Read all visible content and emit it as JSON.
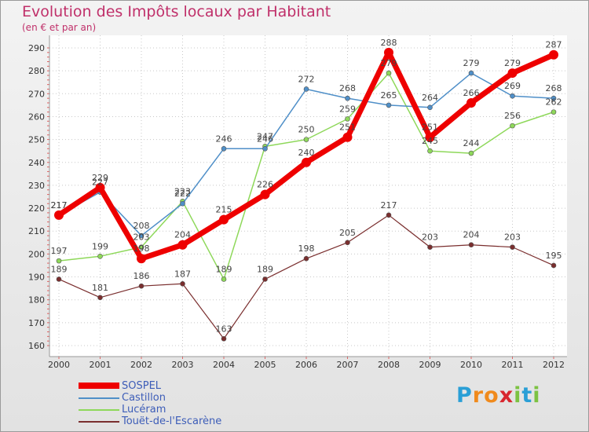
{
  "title": "Evolution des Impôts locaux par Habitant",
  "subtitle": "(en € et par an)",
  "logo": {
    "letters": [
      "P",
      "r",
      "o",
      "x",
      "i",
      "t",
      "i"
    ],
    "colors": [
      "#2a9fd6",
      "#f08a1c",
      "#f08a1c",
      "#d8262e",
      "#7cc242",
      "#2a9fd6",
      "#7cc242"
    ]
  },
  "chart_data": {
    "type": "line",
    "x": [
      "2000",
      "2001",
      "2002",
      "2003",
      "2004",
      "2005",
      "2006",
      "2007",
      "2008",
      "2009",
      "2010",
      "2011",
      "2012"
    ],
    "yticks": [
      "160",
      "170",
      "180",
      "190",
      "200",
      "210",
      "220",
      "230",
      "240",
      "250",
      "260",
      "270",
      "280",
      "290"
    ],
    "ylim": [
      160,
      290
    ],
    "series": [
      {
        "name": "SOSPEL",
        "color": "#ee0000",
        "values": [
          217,
          229,
          198,
          204,
          215,
          226,
          240,
          251,
          288,
          251,
          266,
          279,
          287
        ],
        "labels": [
          "217",
          "229",
          "198",
          "204",
          "215",
          "226",
          "240",
          "251",
          "288",
          "251",
          "266",
          "279",
          "287"
        ]
      },
      {
        "name": "Castillon",
        "color": "#4f8fc8",
        "values": [
          217,
          227,
          208,
          222,
          246,
          246,
          272,
          268,
          265,
          264,
          279,
          269,
          268
        ],
        "labels": [
          "217",
          "227",
          "208",
          "222",
          "246",
          "246",
          "272",
          "268",
          "265",
          "264",
          "279",
          "269",
          "268"
        ]
      },
      {
        "name": "Lucéram",
        "color": "#8ed85a",
        "values": [
          197,
          199,
          203,
          223,
          189,
          247,
          250,
          259,
          279,
          245,
          244,
          256,
          262
        ],
        "labels": [
          "197",
          "199",
          "203",
          "223",
          "189",
          "247",
          "250",
          "259",
          "279",
          "245",
          "244",
          "256",
          "262"
        ]
      },
      {
        "name": "Touët-de-l'Escarène",
        "color": "#7a2e2e",
        "values": [
          189,
          181,
          186,
          187,
          163,
          189,
          198,
          205,
          217,
          203,
          204,
          203,
          195
        ],
        "labels": [
          "189",
          "181",
          "186",
          "187",
          "163",
          "189",
          "198",
          "205",
          "217",
          "203",
          "204",
          "203",
          "195"
        ]
      }
    ]
  }
}
